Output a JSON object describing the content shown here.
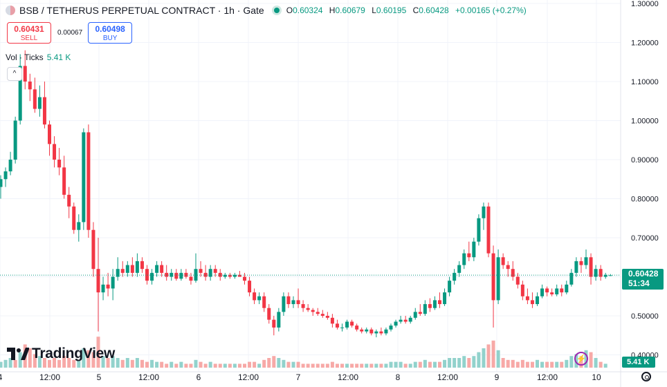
{
  "header": {
    "title": "BSB / TETHERUS PERPETUAL CONTRACT · 1h · Gate",
    "ohlc": {
      "open_label": "O",
      "open": "0.60324",
      "high_label": "H",
      "high": "0.60679",
      "low_label": "L",
      "low": "0.60195",
      "close_label": "C",
      "close": "0.60428",
      "change": "+0.00165 (+0.27%)"
    }
  },
  "trade": {
    "sell_price": "0.60431",
    "sell_label": "SELL",
    "spread": "0.00067",
    "buy_price": "0.60498",
    "buy_label": "BUY"
  },
  "volume_legend": {
    "label": "Vol · Ticks",
    "value": "5.41 K"
  },
  "collapse_icon": "chevron-up-icon",
  "logo_text": "TradingView",
  "current_price_tag": {
    "price": "0.60428",
    "countdown": "51:34"
  },
  "volume_tag": "5.41 K",
  "colors": {
    "up": "#089981",
    "down": "#f23645",
    "up_volume": "#92d2cc",
    "down_volume": "#f7a9a7",
    "grid": "#f0f3fa"
  },
  "chart_data": {
    "type": "candlestick",
    "ylim": [
      0.385,
      1.3
    ],
    "y_ticks": [
      "1.30000",
      "1.20000",
      "1.10000",
      "1.00000",
      "0.90000",
      "0.80000",
      "0.70000",
      "0.60000",
      "0.50000",
      "0.40000"
    ],
    "x_ticks": [
      "4",
      "12:00",
      "5",
      "12:00",
      "6",
      "12:00",
      "7",
      "12:00",
      "8",
      "12:00",
      "9",
      "12:00",
      "10"
    ],
    "current_price": 0.60428,
    "candles": [
      [
        0.83,
        0.86,
        0.8,
        0.85
      ],
      [
        0.85,
        0.88,
        0.83,
        0.87
      ],
      [
        0.87,
        0.92,
        0.86,
        0.9
      ],
      [
        0.9,
        1.01,
        0.89,
        1.0
      ],
      [
        1.0,
        1.17,
        0.99,
        1.14
      ],
      [
        1.14,
        1.18,
        1.08,
        1.1
      ],
      [
        1.1,
        1.12,
        1.05,
        1.08
      ],
      [
        1.08,
        1.11,
        1.02,
        1.03
      ],
      [
        1.03,
        1.09,
        1.01,
        1.06
      ],
      [
        1.06,
        1.1,
        0.98,
        0.99
      ],
      [
        0.99,
        1.0,
        0.91,
        0.94
      ],
      [
        0.94,
        0.96,
        0.88,
        0.9
      ],
      [
        0.9,
        0.93,
        0.86,
        0.88
      ],
      [
        0.88,
        0.91,
        0.8,
        0.81
      ],
      [
        0.81,
        0.83,
        0.75,
        0.78
      ],
      [
        0.78,
        0.79,
        0.71,
        0.72
      ],
      [
        0.72,
        0.76,
        0.69,
        0.74
      ],
      [
        0.74,
        0.98,
        0.72,
        0.97
      ],
      [
        0.97,
        0.99,
        0.7,
        0.72
      ],
      [
        0.72,
        0.74,
        0.6,
        0.62
      ],
      [
        0.62,
        0.7,
        0.46,
        0.56
      ],
      [
        0.56,
        0.6,
        0.54,
        0.58
      ],
      [
        0.58,
        0.61,
        0.55,
        0.57
      ],
      [
        0.57,
        0.62,
        0.54,
        0.6
      ],
      [
        0.6,
        0.65,
        0.59,
        0.62
      ],
      [
        0.62,
        0.64,
        0.6,
        0.61
      ],
      [
        0.61,
        0.64,
        0.6,
        0.63
      ],
      [
        0.63,
        0.65,
        0.6,
        0.61
      ],
      [
        0.61,
        0.66,
        0.6,
        0.64
      ],
      [
        0.64,
        0.65,
        0.61,
        0.62
      ],
      [
        0.62,
        0.63,
        0.58,
        0.59
      ],
      [
        0.59,
        0.62,
        0.58,
        0.61
      ],
      [
        0.61,
        0.64,
        0.6,
        0.63
      ],
      [
        0.63,
        0.64,
        0.6,
        0.61
      ],
      [
        0.61,
        0.63,
        0.59,
        0.6
      ],
      [
        0.6,
        0.62,
        0.59,
        0.61
      ],
      [
        0.61,
        0.62,
        0.59,
        0.595
      ],
      [
        0.595,
        0.62,
        0.59,
        0.61
      ],
      [
        0.61,
        0.62,
        0.595,
        0.6
      ],
      [
        0.6,
        0.61,
        0.58,
        0.59
      ],
      [
        0.59,
        0.66,
        0.585,
        0.62
      ],
      [
        0.62,
        0.64,
        0.6,
        0.61
      ],
      [
        0.61,
        0.63,
        0.59,
        0.6
      ],
      [
        0.6,
        0.63,
        0.59,
        0.62
      ],
      [
        0.62,
        0.63,
        0.6,
        0.61
      ],
      [
        0.61,
        0.62,
        0.59,
        0.6
      ],
      [
        0.6,
        0.61,
        0.595,
        0.605
      ],
      [
        0.605,
        0.61,
        0.595,
        0.6
      ],
      [
        0.6,
        0.61,
        0.595,
        0.605
      ],
      [
        0.605,
        0.615,
        0.6,
        0.6
      ],
      [
        0.6,
        0.61,
        0.58,
        0.59
      ],
      [
        0.59,
        0.6,
        0.55,
        0.56
      ],
      [
        0.56,
        0.57,
        0.53,
        0.54
      ],
      [
        0.54,
        0.56,
        0.53,
        0.55
      ],
      [
        0.55,
        0.56,
        0.51,
        0.52
      ],
      [
        0.52,
        0.53,
        0.48,
        0.49
      ],
      [
        0.49,
        0.5,
        0.45,
        0.47
      ],
      [
        0.47,
        0.52,
        0.46,
        0.51
      ],
      [
        0.51,
        0.56,
        0.5,
        0.55
      ],
      [
        0.55,
        0.56,
        0.52,
        0.53
      ],
      [
        0.53,
        0.55,
        0.52,
        0.54
      ],
      [
        0.54,
        0.57,
        0.52,
        0.53
      ],
      [
        0.53,
        0.54,
        0.51,
        0.52
      ],
      [
        0.52,
        0.53,
        0.51,
        0.515
      ],
      [
        0.515,
        0.52,
        0.5,
        0.51
      ],
      [
        0.51,
        0.52,
        0.5,
        0.505
      ],
      [
        0.505,
        0.515,
        0.495,
        0.5
      ],
      [
        0.5,
        0.51,
        0.49,
        0.495
      ],
      [
        0.495,
        0.505,
        0.47,
        0.48
      ],
      [
        0.48,
        0.49,
        0.465,
        0.47
      ],
      [
        0.47,
        0.48,
        0.46,
        0.47
      ],
      [
        0.47,
        0.49,
        0.465,
        0.485
      ],
      [
        0.485,
        0.49,
        0.47,
        0.475
      ],
      [
        0.475,
        0.48,
        0.46,
        0.465
      ],
      [
        0.465,
        0.47,
        0.455,
        0.46
      ],
      [
        0.46,
        0.47,
        0.455,
        0.465
      ],
      [
        0.465,
        0.47,
        0.45,
        0.455
      ],
      [
        0.455,
        0.465,
        0.445,
        0.46
      ],
      [
        0.46,
        0.47,
        0.45,
        0.455
      ],
      [
        0.455,
        0.47,
        0.45,
        0.465
      ],
      [
        0.465,
        0.48,
        0.46,
        0.475
      ],
      [
        0.475,
        0.49,
        0.47,
        0.485
      ],
      [
        0.485,
        0.5,
        0.48,
        0.49
      ],
      [
        0.49,
        0.5,
        0.48,
        0.485
      ],
      [
        0.485,
        0.5,
        0.48,
        0.495
      ],
      [
        0.495,
        0.52,
        0.49,
        0.51
      ],
      [
        0.51,
        0.53,
        0.5,
        0.505
      ],
      [
        0.505,
        0.54,
        0.5,
        0.53
      ],
      [
        0.53,
        0.545,
        0.51,
        0.52
      ],
      [
        0.52,
        0.55,
        0.515,
        0.54
      ],
      [
        0.54,
        0.56,
        0.52,
        0.53
      ],
      [
        0.53,
        0.57,
        0.525,
        0.56
      ],
      [
        0.56,
        0.6,
        0.55,
        0.59
      ],
      [
        0.59,
        0.62,
        0.58,
        0.61
      ],
      [
        0.61,
        0.64,
        0.6,
        0.63
      ],
      [
        0.63,
        0.67,
        0.62,
        0.66
      ],
      [
        0.66,
        0.69,
        0.64,
        0.65
      ],
      [
        0.65,
        0.7,
        0.64,
        0.69
      ],
      [
        0.69,
        0.76,
        0.68,
        0.75
      ],
      [
        0.75,
        0.79,
        0.72,
        0.78
      ],
      [
        0.78,
        0.79,
        0.65,
        0.66
      ],
      [
        0.66,
        0.68,
        0.47,
        0.54
      ],
      [
        0.54,
        0.67,
        0.53,
        0.65
      ],
      [
        0.65,
        0.66,
        0.62,
        0.63
      ],
      [
        0.63,
        0.64,
        0.6,
        0.62
      ],
      [
        0.62,
        0.64,
        0.59,
        0.6
      ],
      [
        0.6,
        0.61,
        0.57,
        0.58
      ],
      [
        0.58,
        0.59,
        0.54,
        0.55
      ],
      [
        0.55,
        0.57,
        0.53,
        0.54
      ],
      [
        0.54,
        0.56,
        0.52,
        0.53
      ],
      [
        0.53,
        0.56,
        0.525,
        0.55
      ],
      [
        0.55,
        0.58,
        0.545,
        0.57
      ],
      [
        0.57,
        0.575,
        0.55,
        0.56
      ],
      [
        0.56,
        0.57,
        0.55,
        0.555
      ],
      [
        0.555,
        0.58,
        0.55,
        0.57
      ],
      [
        0.57,
        0.58,
        0.55,
        0.56
      ],
      [
        0.56,
        0.59,
        0.555,
        0.58
      ],
      [
        0.58,
        0.62,
        0.575,
        0.61
      ],
      [
        0.61,
        0.65,
        0.6,
        0.64
      ],
      [
        0.64,
        0.65,
        0.61,
        0.63
      ],
      [
        0.63,
        0.67,
        0.62,
        0.65
      ],
      [
        0.65,
        0.66,
        0.58,
        0.6
      ],
      [
        0.6,
        0.63,
        0.59,
        0.62
      ],
      [
        0.62,
        0.63,
        0.59,
        0.6
      ],
      [
        0.6,
        0.61,
        0.595,
        0.605
      ],
      [
        0.603,
        0.607,
        0.602,
        0.604
      ]
    ],
    "volumes": [
      [
        3,
        1
      ],
      [
        4,
        1
      ],
      [
        5,
        1
      ],
      [
        4,
        0
      ],
      [
        8,
        1
      ],
      [
        12,
        0
      ],
      [
        10,
        0
      ],
      [
        7,
        0
      ],
      [
        6,
        1
      ],
      [
        5,
        0
      ],
      [
        4,
        0
      ],
      [
        5,
        0
      ],
      [
        4,
        0
      ],
      [
        6,
        0
      ],
      [
        5,
        0
      ],
      [
        4,
        0
      ],
      [
        4,
        1
      ],
      [
        10,
        1
      ],
      [
        9,
        0
      ],
      [
        8,
        0
      ],
      [
        16,
        0
      ],
      [
        6,
        1
      ],
      [
        5,
        0
      ],
      [
        6,
        1
      ],
      [
        5,
        1
      ],
      [
        4,
        0
      ],
      [
        5,
        1
      ],
      [
        4,
        0
      ],
      [
        5,
        1
      ],
      [
        4,
        0
      ],
      [
        3,
        0
      ],
      [
        4,
        1
      ],
      [
        3,
        1
      ],
      [
        3,
        0
      ],
      [
        2,
        0
      ],
      [
        3,
        1
      ],
      [
        2,
        0
      ],
      [
        3,
        1
      ],
      [
        2,
        0
      ],
      [
        2,
        0
      ],
      [
        4,
        1
      ],
      [
        3,
        0
      ],
      [
        2,
        0
      ],
      [
        3,
        1
      ],
      [
        2,
        0
      ],
      [
        2,
        0
      ],
      [
        2,
        1
      ],
      [
        2,
        0
      ],
      [
        2,
        1
      ],
      [
        2,
        0
      ],
      [
        2,
        0
      ],
      [
        3,
        0
      ],
      [
        3,
        0
      ],
      [
        2,
        1
      ],
      [
        4,
        0
      ],
      [
        5,
        0
      ],
      [
        6,
        0
      ],
      [
        5,
        1
      ],
      [
        4,
        1
      ],
      [
        3,
        0
      ],
      [
        3,
        1
      ],
      [
        3,
        0
      ],
      [
        2,
        0
      ],
      [
        2,
        0
      ],
      [
        2,
        0
      ],
      [
        2,
        0
      ],
      [
        2,
        0
      ],
      [
        2,
        0
      ],
      [
        3,
        0
      ],
      [
        2,
        0
      ],
      [
        2,
        0
      ],
      [
        2,
        1
      ],
      [
        2,
        0
      ],
      [
        2,
        0
      ],
      [
        2,
        0
      ],
      [
        2,
        1
      ],
      [
        2,
        0
      ],
      [
        2,
        1
      ],
      [
        2,
        0
      ],
      [
        2,
        1
      ],
      [
        3,
        1
      ],
      [
        3,
        1
      ],
      [
        3,
        1
      ],
      [
        2,
        0
      ],
      [
        2,
        1
      ],
      [
        3,
        1
      ],
      [
        3,
        0
      ],
      [
        4,
        1
      ],
      [
        3,
        0
      ],
      [
        3,
        1
      ],
      [
        3,
        0
      ],
      [
        4,
        1
      ],
      [
        5,
        1
      ],
      [
        5,
        1
      ],
      [
        5,
        1
      ],
      [
        6,
        1
      ],
      [
        5,
        0
      ],
      [
        6,
        1
      ],
      [
        8,
        1
      ],
      [
        10,
        1
      ],
      [
        12,
        0
      ],
      [
        14,
        0
      ],
      [
        9,
        1
      ],
      [
        5,
        0
      ],
      [
        4,
        0
      ],
      [
        4,
        0
      ],
      [
        3,
        0
      ],
      [
        4,
        0
      ],
      [
        3,
        0
      ],
      [
        3,
        0
      ],
      [
        4,
        1
      ],
      [
        3,
        1
      ],
      [
        3,
        0
      ],
      [
        3,
        0
      ],
      [
        3,
        1
      ],
      [
        3,
        0
      ],
      [
        4,
        1
      ],
      [
        6,
        1
      ],
      [
        7,
        1
      ],
      [
        6,
        0
      ],
      [
        9,
        1
      ],
      [
        8,
        0
      ],
      [
        5,
        1
      ],
      [
        3,
        0
      ],
      [
        2,
        1
      ]
    ]
  }
}
